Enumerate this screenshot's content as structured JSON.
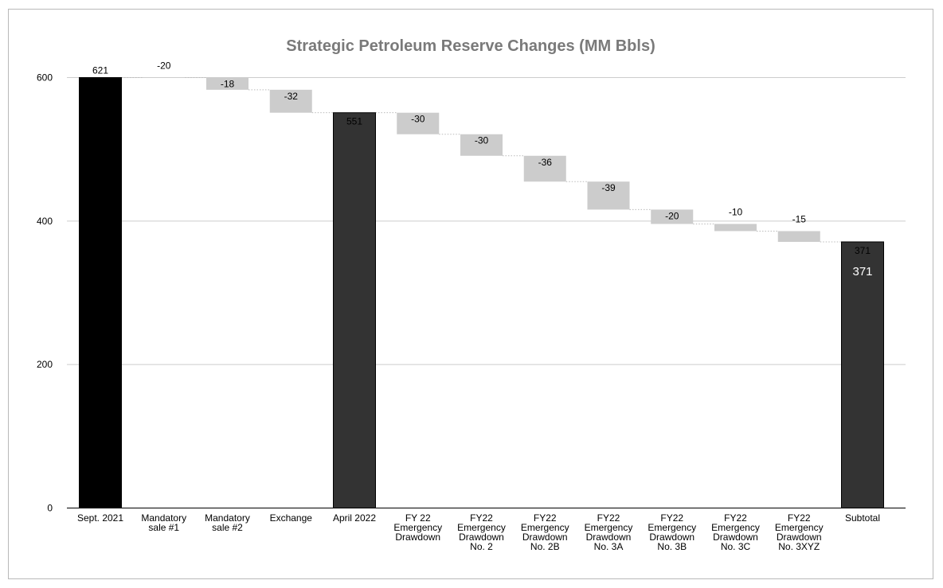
{
  "chart_data": {
    "type": "bar",
    "subtype": "waterfall",
    "title": "Strategic Petroleum Reserve Changes (MM Bbls)",
    "xlabel": "",
    "ylabel": "",
    "ylim": [
      0,
      600
    ],
    "yticks": [
      0,
      200,
      400,
      600
    ],
    "grid": true,
    "legend": "none",
    "colors": {
      "start_total": "#000000",
      "total": "#333333",
      "decrease": "#cccccc",
      "gridline": "#cccccc",
      "connector": "#bbbbbb",
      "title": "#7a7a7a"
    },
    "categories": [
      [
        "Sept. 2021"
      ],
      [
        "Mandatory",
        "sale #1"
      ],
      [
        "Mandatory",
        "sale #2"
      ],
      [
        "Exchange"
      ],
      [
        "April 2022"
      ],
      [
        "FY 22",
        "Emergency",
        "Drawdown"
      ],
      [
        "FY22",
        "Emergency",
        "Drawdown",
        "No. 2"
      ],
      [
        "FY22",
        "Emergency",
        "Drawdown",
        "No. 2B"
      ],
      [
        "FY22",
        "Emergency",
        "Drawdown",
        "No. 3A"
      ],
      [
        "FY22",
        "Emergency",
        "Drawdown",
        "No. 3B"
      ],
      [
        "FY22",
        "Emergency",
        "Drawdown",
        "No. 3C"
      ],
      [
        "FY22",
        "Emergency",
        "Drawdown",
        "No. 3XYZ"
      ],
      [
        "Subtotal"
      ]
    ],
    "bars": [
      {
        "kind": "total",
        "color": "#000000",
        "value": 621,
        "label": "621"
      },
      {
        "kind": "change",
        "value": -20,
        "label": "-20"
      },
      {
        "kind": "change",
        "value": -18,
        "label": "-18"
      },
      {
        "kind": "change",
        "value": -32,
        "label": "-32"
      },
      {
        "kind": "total",
        "color": "#333333",
        "value": 551,
        "label": "551"
      },
      {
        "kind": "change",
        "value": -30,
        "label": "-30"
      },
      {
        "kind": "change",
        "value": -30,
        "label": "-30"
      },
      {
        "kind": "change",
        "value": -36,
        "label": "-36"
      },
      {
        "kind": "change",
        "value": -39,
        "label": "-39"
      },
      {
        "kind": "change",
        "value": -20,
        "label": "-20"
      },
      {
        "kind": "change",
        "value": -10,
        "label": "-10"
      },
      {
        "kind": "change",
        "value": -15,
        "label": "-15"
      },
      {
        "kind": "total",
        "color": "#333333",
        "value": 371,
        "label": "371",
        "inner_label": "371"
      }
    ]
  }
}
